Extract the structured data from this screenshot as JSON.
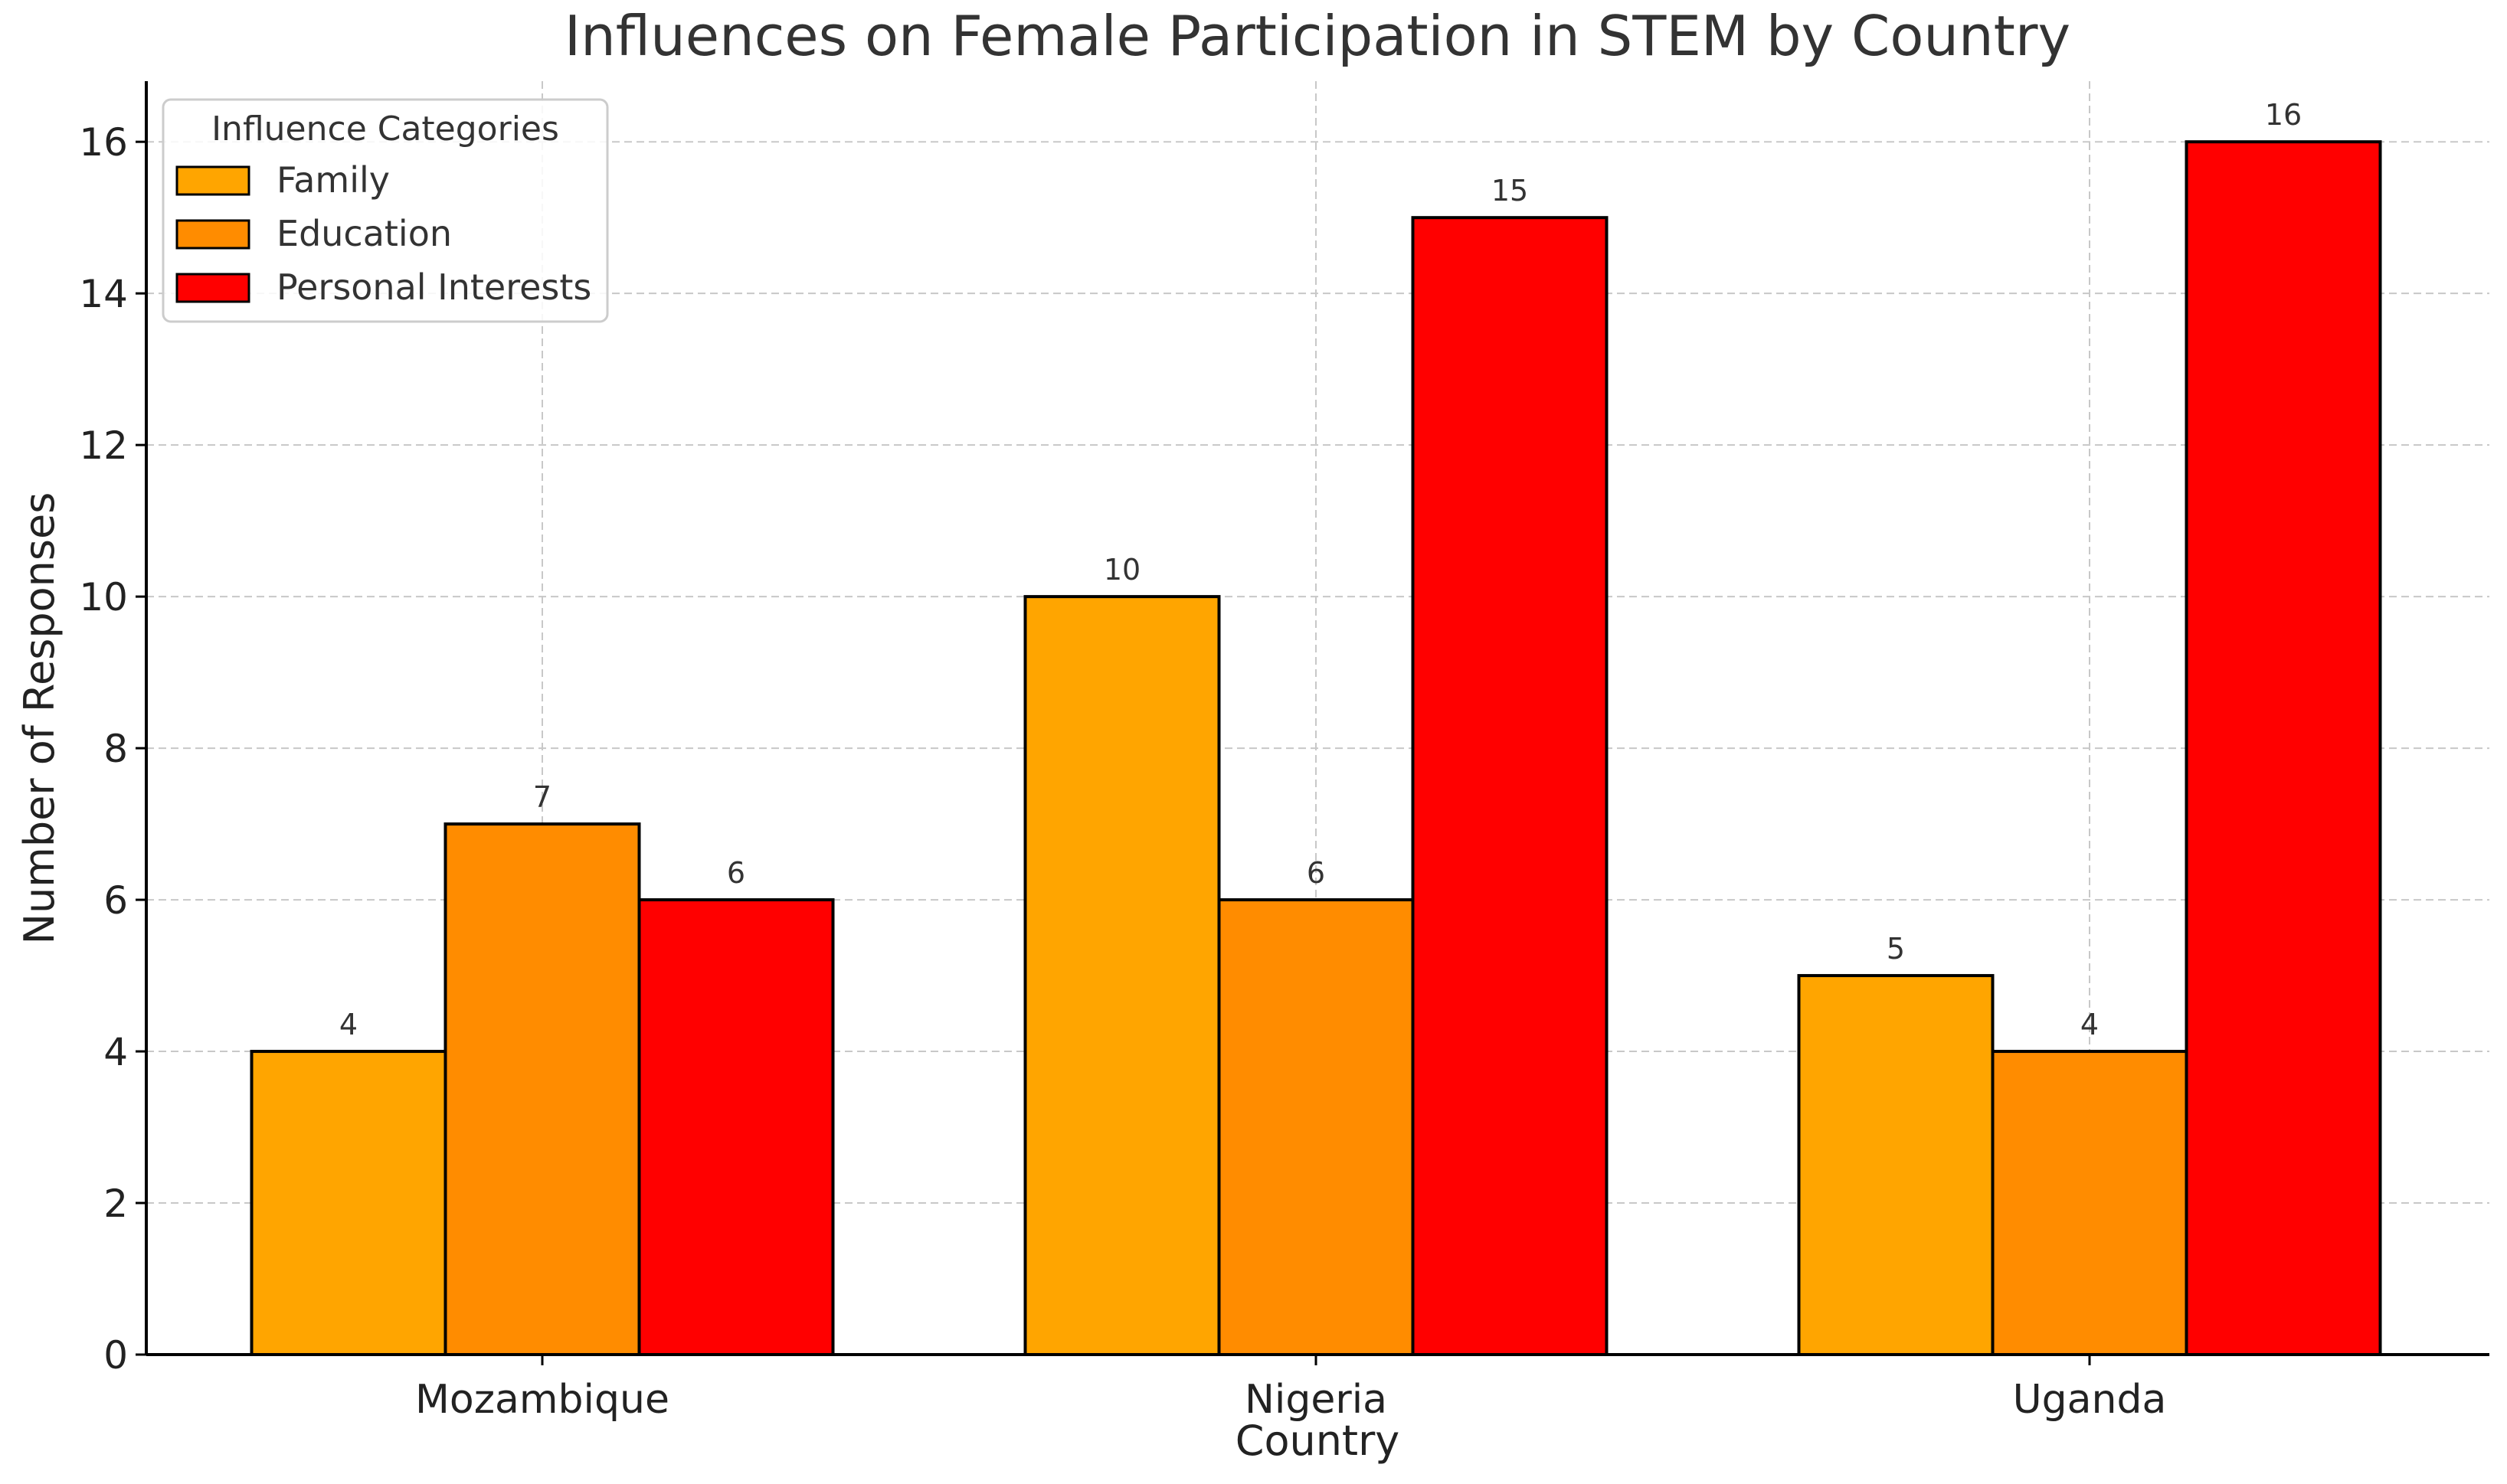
{
  "chart_data": {
    "type": "bar",
    "title": "Influences on Female Participation in STEM by Country",
    "xlabel": "Country",
    "ylabel": "Number of Responses",
    "categories": [
      "Mozambique",
      "Nigeria",
      "Uganda"
    ],
    "series": [
      {
        "name": "Family",
        "color": "#FFA500",
        "values": [
          4,
          10,
          5
        ]
      },
      {
        "name": "Education",
        "color": "#FF8C00",
        "values": [
          7,
          6,
          4
        ]
      },
      {
        "name": "Personal Interests",
        "color": "#FF0000",
        "values": [
          6,
          15,
          16
        ]
      }
    ],
    "ylim": [
      0,
      16.8
    ],
    "yticks": [
      0,
      2,
      4,
      6,
      8,
      10,
      12,
      14,
      16
    ],
    "grid": true,
    "legend": {
      "title": "Influence Categories",
      "position": "top-left"
    }
  }
}
